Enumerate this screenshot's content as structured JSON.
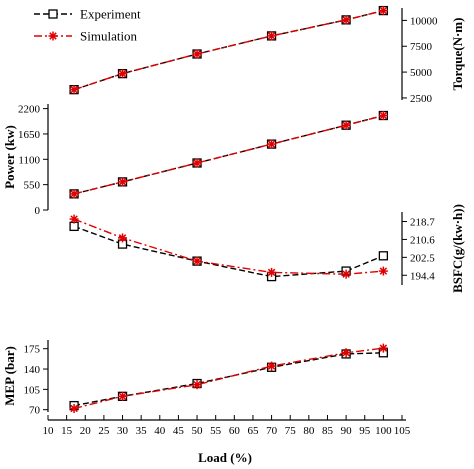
{
  "chart_data": [
    {
      "type": "line",
      "panel": "torque",
      "ylabel": "Torque(N·m)",
      "ylabel_side": "right",
      "ylim": [
        2300,
        11200
      ],
      "yticks": [
        2500,
        5000,
        7500,
        10000
      ],
      "x": [
        17,
        30,
        50,
        70,
        90,
        100
      ],
      "series": [
        {
          "name": "Experiment",
          "values": [
            3300,
            4850,
            6750,
            8500,
            10050,
            10950
          ],
          "color": "#000000",
          "marker": "square",
          "dash": "dashed"
        },
        {
          "name": "Simulation",
          "values": [
            3300,
            4850,
            6750,
            8500,
            10050,
            10950
          ],
          "color": "#e00000",
          "marker": "asterisk",
          "dash": "dashdot"
        }
      ]
    },
    {
      "type": "line",
      "panel": "power",
      "ylabel": "Power (kw)",
      "ylabel_side": "left",
      "ylim": [
        0,
        2300
      ],
      "yticks": [
        0,
        550,
        1100,
        1650,
        2200
      ],
      "x": [
        17,
        30,
        50,
        70,
        90,
        100
      ],
      "series": [
        {
          "name": "Experiment",
          "values": [
            350,
            610,
            1020,
            1430,
            1840,
            2050
          ],
          "color": "#000000",
          "marker": "square",
          "dash": "dashed"
        },
        {
          "name": "Simulation",
          "values": [
            350,
            610,
            1020,
            1430,
            1840,
            2050
          ],
          "color": "#e00000",
          "marker": "asterisk",
          "dash": "dashdot"
        }
      ]
    },
    {
      "type": "line",
      "panel": "bsfc",
      "ylabel": "BSFC(g/(kw·h))",
      "ylabel_side": "right",
      "ylim": [
        190,
        223
      ],
      "yticks": [
        194.4,
        202.5,
        210.6,
        218.7
      ],
      "x": [
        17,
        30,
        50,
        70,
        90,
        100
      ],
      "series": [
        {
          "name": "Experiment",
          "values": [
            216.5,
            208.5,
            200.8,
            193.8,
            196.3,
            203.2
          ],
          "color": "#000000",
          "marker": "square",
          "dash": "dashed"
        },
        {
          "name": "Simulation",
          "values": [
            219.8,
            211.3,
            200.8,
            195.7,
            194.9,
            196.3
          ],
          "color": "#e00000",
          "marker": "asterisk",
          "dash": "dashdot"
        }
      ]
    },
    {
      "type": "line",
      "panel": "mep",
      "ylabel": "MEP (bar)",
      "ylabel_side": "left",
      "xlabel": "Load (%)",
      "xlim": [
        10,
        105
      ],
      "xticks": [
        10,
        15,
        20,
        25,
        30,
        35,
        40,
        45,
        50,
        55,
        60,
        65,
        70,
        75,
        80,
        85,
        90,
        95,
        100,
        105
      ],
      "ylim": [
        66,
        190
      ],
      "yticks": [
        70,
        105,
        140,
        175
      ],
      "x": [
        17,
        30,
        50,
        70,
        90,
        100
      ],
      "series": [
        {
          "name": "Experiment",
          "values": [
            77,
            93,
            115,
            143,
            166,
            168
          ],
          "color": "#000000",
          "marker": "square",
          "dash": "dashed"
        },
        {
          "name": "Simulation",
          "values": [
            72,
            93,
            113,
            145,
            168,
            176
          ],
          "color": "#e00000",
          "marker": "asterisk",
          "dash": "dashdot"
        }
      ]
    }
  ],
  "legend": [
    {
      "label": "Experiment",
      "color": "#000000",
      "marker": "square",
      "dash": "dashed"
    },
    {
      "label": "Simulation",
      "color": "#e00000",
      "marker": "asterisk",
      "dash": "dashdot"
    }
  ]
}
